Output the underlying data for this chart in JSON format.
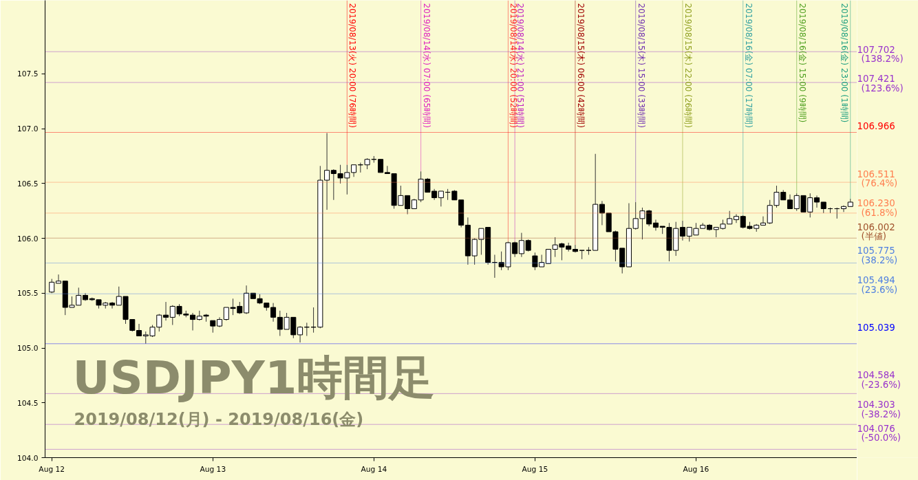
{
  "chart_data": {
    "type": "candlestick",
    "title": "USDJPY1時間足",
    "subtitle": "2019/08/12(月) - 2019/08/16(金)",
    "x": [
      "2019-08-12T00:00",
      "2019-08-12T01:00",
      "2019-08-12T02:00",
      "2019-08-12T03:00",
      "2019-08-12T04:00",
      "2019-08-12T05:00",
      "2019-08-12T06:00",
      "2019-08-12T07:00",
      "2019-08-12T08:00",
      "2019-08-12T09:00",
      "2019-08-12T10:00",
      "2019-08-12T11:00",
      "2019-08-12T12:00",
      "2019-08-12T13:00",
      "2019-08-12T14:00",
      "2019-08-12T15:00",
      "2019-08-12T16:00",
      "2019-08-12T17:00",
      "2019-08-12T18:00",
      "2019-08-12T19:00",
      "2019-08-12T20:00",
      "2019-08-12T21:00",
      "2019-08-12T22:00",
      "2019-08-12T23:00",
      "2019-08-13T00:00",
      "2019-08-13T01:00",
      "2019-08-13T02:00",
      "2019-08-13T03:00",
      "2019-08-13T04:00",
      "2019-08-13T05:00",
      "2019-08-13T06:00",
      "2019-08-13T07:00",
      "2019-08-13T08:00",
      "2019-08-13T09:00",
      "2019-08-13T10:00",
      "2019-08-13T11:00",
      "2019-08-13T12:00",
      "2019-08-13T13:00",
      "2019-08-13T14:00",
      "2019-08-13T15:00",
      "2019-08-13T16:00",
      "2019-08-13T17:00",
      "2019-08-13T18:00",
      "2019-08-13T19:00",
      "2019-08-13T20:00",
      "2019-08-13T21:00",
      "2019-08-13T22:00",
      "2019-08-13T23:00",
      "2019-08-14T00:00",
      "2019-08-14T01:00",
      "2019-08-14T02:00",
      "2019-08-14T03:00",
      "2019-08-14T04:00",
      "2019-08-14T05:00",
      "2019-08-14T06:00",
      "2019-08-14T07:00",
      "2019-08-14T08:00",
      "2019-08-14T09:00",
      "2019-08-14T10:00",
      "2019-08-14T11:00",
      "2019-08-14T12:00",
      "2019-08-14T13:00",
      "2019-08-14T14:00",
      "2019-08-14T15:00",
      "2019-08-14T16:00",
      "2019-08-14T17:00",
      "2019-08-14T18:00",
      "2019-08-14T19:00",
      "2019-08-14T20:00",
      "2019-08-14T21:00",
      "2019-08-14T22:00",
      "2019-08-14T23:00",
      "2019-08-15T00:00",
      "2019-08-15T01:00",
      "2019-08-15T02:00",
      "2019-08-15T03:00",
      "2019-08-15T04:00",
      "2019-08-15T05:00",
      "2019-08-15T06:00",
      "2019-08-15T07:00",
      "2019-08-15T08:00",
      "2019-08-15T09:00",
      "2019-08-15T10:00",
      "2019-08-15T11:00",
      "2019-08-15T12:00",
      "2019-08-15T13:00",
      "2019-08-15T14:00",
      "2019-08-15T15:00",
      "2019-08-15T16:00",
      "2019-08-15T17:00",
      "2019-08-15T18:00",
      "2019-08-15T19:00",
      "2019-08-15T20:00",
      "2019-08-15T21:00",
      "2019-08-15T22:00",
      "2019-08-15T23:00",
      "2019-08-16T00:00",
      "2019-08-16T01:00",
      "2019-08-16T02:00",
      "2019-08-16T03:00",
      "2019-08-16T04:00",
      "2019-08-16T05:00",
      "2019-08-16T06:00",
      "2019-08-16T07:00",
      "2019-08-16T08:00",
      "2019-08-16T09:00",
      "2019-08-16T10:00",
      "2019-08-16T11:00",
      "2019-08-16T12:00",
      "2019-08-16T13:00",
      "2019-08-16T14:00",
      "2019-08-16T15:00",
      "2019-08-16T16:00",
      "2019-08-16T17:00",
      "2019-08-16T18:00",
      "2019-08-16T19:00",
      "2019-08-16T20:00",
      "2019-08-16T21:00",
      "2019-08-16T22:00",
      "2019-08-16T23:00"
    ],
    "ohlc": [
      [
        105.51,
        105.63,
        105.5,
        105.6
      ],
      [
        105.59,
        105.67,
        105.59,
        105.61
      ],
      [
        105.61,
        105.61,
        105.3,
        105.37
      ],
      [
        105.37,
        105.47,
        105.37,
        105.39
      ],
      [
        105.39,
        105.55,
        105.39,
        105.48
      ],
      [
        105.48,
        105.5,
        105.43,
        105.44
      ],
      [
        105.45,
        105.46,
        105.43,
        105.44
      ],
      [
        105.44,
        105.44,
        105.36,
        105.39
      ],
      [
        105.39,
        105.42,
        105.36,
        105.41
      ],
      [
        105.41,
        105.42,
        105.36,
        105.39
      ],
      [
        105.39,
        105.56,
        105.39,
        105.47
      ],
      [
        105.47,
        105.47,
        105.22,
        105.26
      ],
      [
        105.26,
        105.26,
        105.15,
        105.16
      ],
      [
        105.16,
        105.22,
        105.11,
        105.11
      ],
      [
        105.11,
        105.15,
        105.04,
        105.12
      ],
      [
        105.11,
        105.21,
        105.1,
        105.19
      ],
      [
        105.19,
        105.31,
        105.15,
        105.3
      ],
      [
        105.3,
        105.42,
        105.25,
        105.28
      ],
      [
        105.28,
        105.39,
        105.21,
        105.38
      ],
      [
        105.38,
        105.4,
        105.29,
        105.31
      ],
      [
        105.31,
        105.34,
        105.28,
        105.3
      ],
      [
        105.3,
        105.32,
        105.16,
        105.26
      ],
      [
        105.26,
        105.34,
        105.25,
        105.29
      ],
      [
        105.3,
        105.31,
        105.24,
        105.29
      ],
      [
        105.25,
        105.25,
        105.14,
        105.2
      ],
      [
        105.2,
        105.28,
        105.19,
        105.26
      ],
      [
        105.26,
        105.37,
        105.25,
        105.37
      ],
      [
        105.37,
        105.45,
        105.3,
        105.36
      ],
      [
        105.38,
        105.42,
        105.31,
        105.32
      ],
      [
        105.32,
        105.57,
        105.31,
        105.5
      ],
      [
        105.5,
        105.5,
        105.45,
        105.45
      ],
      [
        105.45,
        105.49,
        105.4,
        105.41
      ],
      [
        105.41,
        105.41,
        105.34,
        105.37
      ],
      [
        105.37,
        105.41,
        105.24,
        105.28
      ],
      [
        105.28,
        105.34,
        105.11,
        105.17
      ],
      [
        105.17,
        105.32,
        105.17,
        105.28
      ],
      [
        105.28,
        105.28,
        105.09,
        105.12
      ],
      [
        105.12,
        105.2,
        105.05,
        105.19
      ],
      [
        105.19,
        105.23,
        105.11,
        105.19
      ],
      [
        105.19,
        105.37,
        105.14,
        105.19
      ],
      [
        105.19,
        106.66,
        105.18,
        106.53
      ],
      [
        106.53,
        106.96,
        106.26,
        106.62
      ],
      [
        106.62,
        106.63,
        106.35,
        106.59
      ],
      [
        106.59,
        106.67,
        106.5,
        106.55
      ],
      [
        106.55,
        106.67,
        106.4,
        106.6
      ],
      [
        106.6,
        106.67,
        106.56,
        106.67
      ],
      [
        106.67,
        106.69,
        106.6,
        106.67
      ],
      [
        106.67,
        106.73,
        106.63,
        106.72
      ],
      [
        106.72,
        106.75,
        106.69,
        106.72
      ],
      [
        106.72,
        106.72,
        106.6,
        106.6
      ],
      [
        106.6,
        106.66,
        106.59,
        106.59
      ],
      [
        106.59,
        106.59,
        106.27,
        106.3
      ],
      [
        106.3,
        106.48,
        106.3,
        106.39
      ],
      [
        106.39,
        106.39,
        106.22,
        106.27
      ],
      [
        106.27,
        106.36,
        106.27,
        106.35
      ],
      [
        106.35,
        106.61,
        106.33,
        106.54
      ],
      [
        106.54,
        106.55,
        106.42,
        106.42
      ],
      [
        106.43,
        106.45,
        106.35,
        106.37
      ],
      [
        106.37,
        106.43,
        106.29,
        106.43
      ],
      [
        106.42,
        106.45,
        106.35,
        106.42
      ],
      [
        106.43,
        106.44,
        106.35,
        106.35
      ],
      [
        106.35,
        106.35,
        106.1,
        106.12
      ],
      [
        106.12,
        106.19,
        105.76,
        105.84
      ],
      [
        105.84,
        106.0,
        105.76,
        105.99
      ],
      [
        105.99,
        106.09,
        105.85,
        106.09
      ],
      [
        106.1,
        106.1,
        105.76,
        105.78
      ],
      [
        105.78,
        105.85,
        105.64,
        105.78
      ],
      [
        105.78,
        105.88,
        105.71,
        105.74
      ],
      [
        105.74,
        105.97,
        105.71,
        105.96
      ],
      [
        105.96,
        105.97,
        105.83,
        105.86
      ],
      [
        105.86,
        106.05,
        105.83,
        105.98
      ],
      [
        105.98,
        105.99,
        105.88,
        105.89
      ],
      [
        105.84,
        105.87,
        105.71,
        105.74
      ],
      [
        105.74,
        105.85,
        105.74,
        105.78
      ],
      [
        105.77,
        105.9,
        105.77,
        105.9
      ],
      [
        105.9,
        106.01,
        105.83,
        105.94
      ],
      [
        105.95,
        105.96,
        105.8,
        105.92
      ],
      [
        105.93,
        105.96,
        105.88,
        105.9
      ],
      [
        105.9,
        105.94,
        105.87,
        105.88
      ],
      [
        105.89,
        105.89,
        105.81,
        105.89
      ],
      [
        105.89,
        105.92,
        105.85,
        105.89
      ],
      [
        105.89,
        106.77,
        105.89,
        106.31
      ],
      [
        106.31,
        106.34,
        106.12,
        106.23
      ],
      [
        106.23,
        106.23,
        106.06,
        106.06
      ],
      [
        106.06,
        106.07,
        105.79,
        105.9
      ],
      [
        105.91,
        105.91,
        105.68,
        105.74
      ],
      [
        105.74,
        106.32,
        105.74,
        106.09
      ],
      [
        106.09,
        106.33,
        106.08,
        106.18
      ],
      [
        106.18,
        106.28,
        105.99,
        106.25
      ],
      [
        106.25,
        106.26,
        106.11,
        106.13
      ],
      [
        106.14,
        106.17,
        106.07,
        106.1
      ],
      [
        106.11,
        106.11,
        106.04,
        106.1
      ],
      [
        106.1,
        106.14,
        105.79,
        105.89
      ],
      [
        105.89,
        106.15,
        105.84,
        106.09
      ],
      [
        106.1,
        106.16,
        105.98,
        106.02
      ],
      [
        106.02,
        106.1,
        105.97,
        106.1
      ],
      [
        106.03,
        106.14,
        106.03,
        106.09
      ],
      [
        106.09,
        106.14,
        106.09,
        106.12
      ],
      [
        106.12,
        106.13,
        106.07,
        106.08
      ],
      [
        106.08,
        106.1,
        106.01,
        106.1
      ],
      [
        106.09,
        106.17,
        106.08,
        106.13
      ],
      [
        106.13,
        106.25,
        106.13,
        106.18
      ],
      [
        106.17,
        106.22,
        106.14,
        106.2
      ],
      [
        106.2,
        106.21,
        106.09,
        106.1
      ],
      [
        106.11,
        106.15,
        106.08,
        106.09
      ],
      [
        106.09,
        106.13,
        106.06,
        106.12
      ],
      [
        106.12,
        106.2,
        106.12,
        106.14
      ],
      [
        106.14,
        106.35,
        106.13,
        106.3
      ],
      [
        106.3,
        106.48,
        106.28,
        106.42
      ],
      [
        106.42,
        106.44,
        106.35,
        106.35
      ],
      [
        106.35,
        106.4,
        106.27,
        106.27
      ],
      [
        106.27,
        106.41,
        106.25,
        106.39
      ],
      [
        106.39,
        106.39,
        106.24,
        106.24
      ],
      [
        106.24,
        106.41,
        106.19,
        106.37
      ],
      [
        106.37,
        106.39,
        106.28,
        106.33
      ],
      [
        106.33,
        106.33,
        106.23,
        106.27
      ],
      [
        106.27,
        106.28,
        106.23,
        106.27
      ],
      [
        106.27,
        106.28,
        106.18,
        106.27
      ],
      [
        106.27,
        106.3,
        106.24,
        106.29
      ],
      [
        106.29,
        106.36,
        106.29,
        106.33
      ]
    ],
    "xlim": [
      "2019-08-11T23:00",
      "2019-08-17T00:00"
    ],
    "xticks": [
      {
        "value": "2019-08-12",
        "label": "Aug 12"
      },
      {
        "value": "2019-08-13",
        "label": "Aug 13"
      },
      {
        "value": "2019-08-14",
        "label": "Aug 14"
      },
      {
        "value": "2019-08-15",
        "label": "Aug 15"
      },
      {
        "value": "2019-08-16",
        "label": "Aug 16"
      }
    ],
    "ylim": [
      104.0,
      108.17
    ],
    "yticks": [
      {
        "value": 104.0,
        "label": "104.0"
      },
      {
        "value": 104.5,
        "label": "104.5"
      },
      {
        "value": 105.0,
        "label": "105.0"
      },
      {
        "value": 105.5,
        "label": "105.5"
      },
      {
        "value": 106.0,
        "label": "106.0"
      },
      {
        "value": 106.5,
        "label": "106.5"
      },
      {
        "value": 107.0,
        "label": "107.0"
      },
      {
        "value": 107.5,
        "label": "107.5"
      }
    ],
    "ref_lines": [
      {
        "axis": "y",
        "value": 107.702,
        "label": "107.702\n(138.2%)",
        "color": "#9933cc"
      },
      {
        "axis": "y",
        "value": 107.421,
        "label": "107.421\n(123.6%)",
        "color": "#9933cc"
      },
      {
        "axis": "y",
        "value": 106.966,
        "label": "106.966",
        "color": "#ff0000"
      },
      {
        "axis": "y",
        "value": 106.511,
        "label": "106.511\n(76.4%)",
        "color": "#ff7f50"
      },
      {
        "axis": "y",
        "value": 106.23,
        "label": "106.230\n(61.8%)",
        "color": "#ff7f50"
      },
      {
        "axis": "y",
        "value": 106.002,
        "label": "106.002\n(半値)",
        "color": "#a0522d"
      },
      {
        "axis": "y",
        "value": 105.775,
        "label": "105.775\n(38.2%)",
        "color": "#5080e0"
      },
      {
        "axis": "y",
        "value": 105.494,
        "label": "105.494\n(23.6%)",
        "color": "#5080e0"
      },
      {
        "axis": "y",
        "value": 105.039,
        "label": "105.039",
        "color": "#0000ff"
      },
      {
        "axis": "y",
        "value": 104.584,
        "label": "104.584\n(-23.6%)",
        "color": "#9933cc"
      },
      {
        "axis": "y",
        "value": 104.303,
        "label": "104.303\n(-38.2%)",
        "color": "#9933cc"
      },
      {
        "axis": "y",
        "value": 104.076,
        "label": "104.076\n(-50.0%)",
        "color": "#9933cc"
      },
      {
        "axis": "x",
        "value": "2019-08-13T20:00",
        "label": "2019/08/13(火) 20:00 (76時間)",
        "color": "#ff0000"
      },
      {
        "axis": "x",
        "value": "2019-08-14T07:00",
        "label": "2019/08/14(水) 07:00 (65時間)",
        "color": "#e020c0"
      },
      {
        "axis": "x",
        "value": "2019-08-14T20:00",
        "label": "2019/08/14(水) 20:00 (52時間)",
        "color": "#ff2020"
      },
      {
        "axis": "x",
        "value": "2019-08-14T21:00",
        "label": "2019/08/14(水) 21:00 (51時間)",
        "color": "#c020c0"
      },
      {
        "axis": "x",
        "value": "2019-08-15T06:00",
        "label": "2019/08/15(木) 06:00 (42時間)",
        "color": "#a00000"
      },
      {
        "axis": "x",
        "value": "2019-08-15T15:00",
        "label": "2019/08/15(木) 15:00 (33時間)",
        "color": "#7030b0"
      },
      {
        "axis": "x",
        "value": "2019-08-15T22:00",
        "label": "2019/08/15(木) 22:00 (26時間)",
        "color": "#90a020"
      },
      {
        "axis": "x",
        "value": "2019-08-16T07:00",
        "label": "2019/08/16(金) 07:00 (17時間)",
        "color": "#30a0a0"
      },
      {
        "axis": "x",
        "value": "2019-08-16T15:00",
        "label": "2019/08/16(金) 15:00 (9時間)",
        "color": "#50a020"
      },
      {
        "axis": "x",
        "value": "2019-08-16T23:00",
        "label": "2019/08/16(金) 23:00 (1時間)",
        "color": "#20a080"
      }
    ]
  }
}
